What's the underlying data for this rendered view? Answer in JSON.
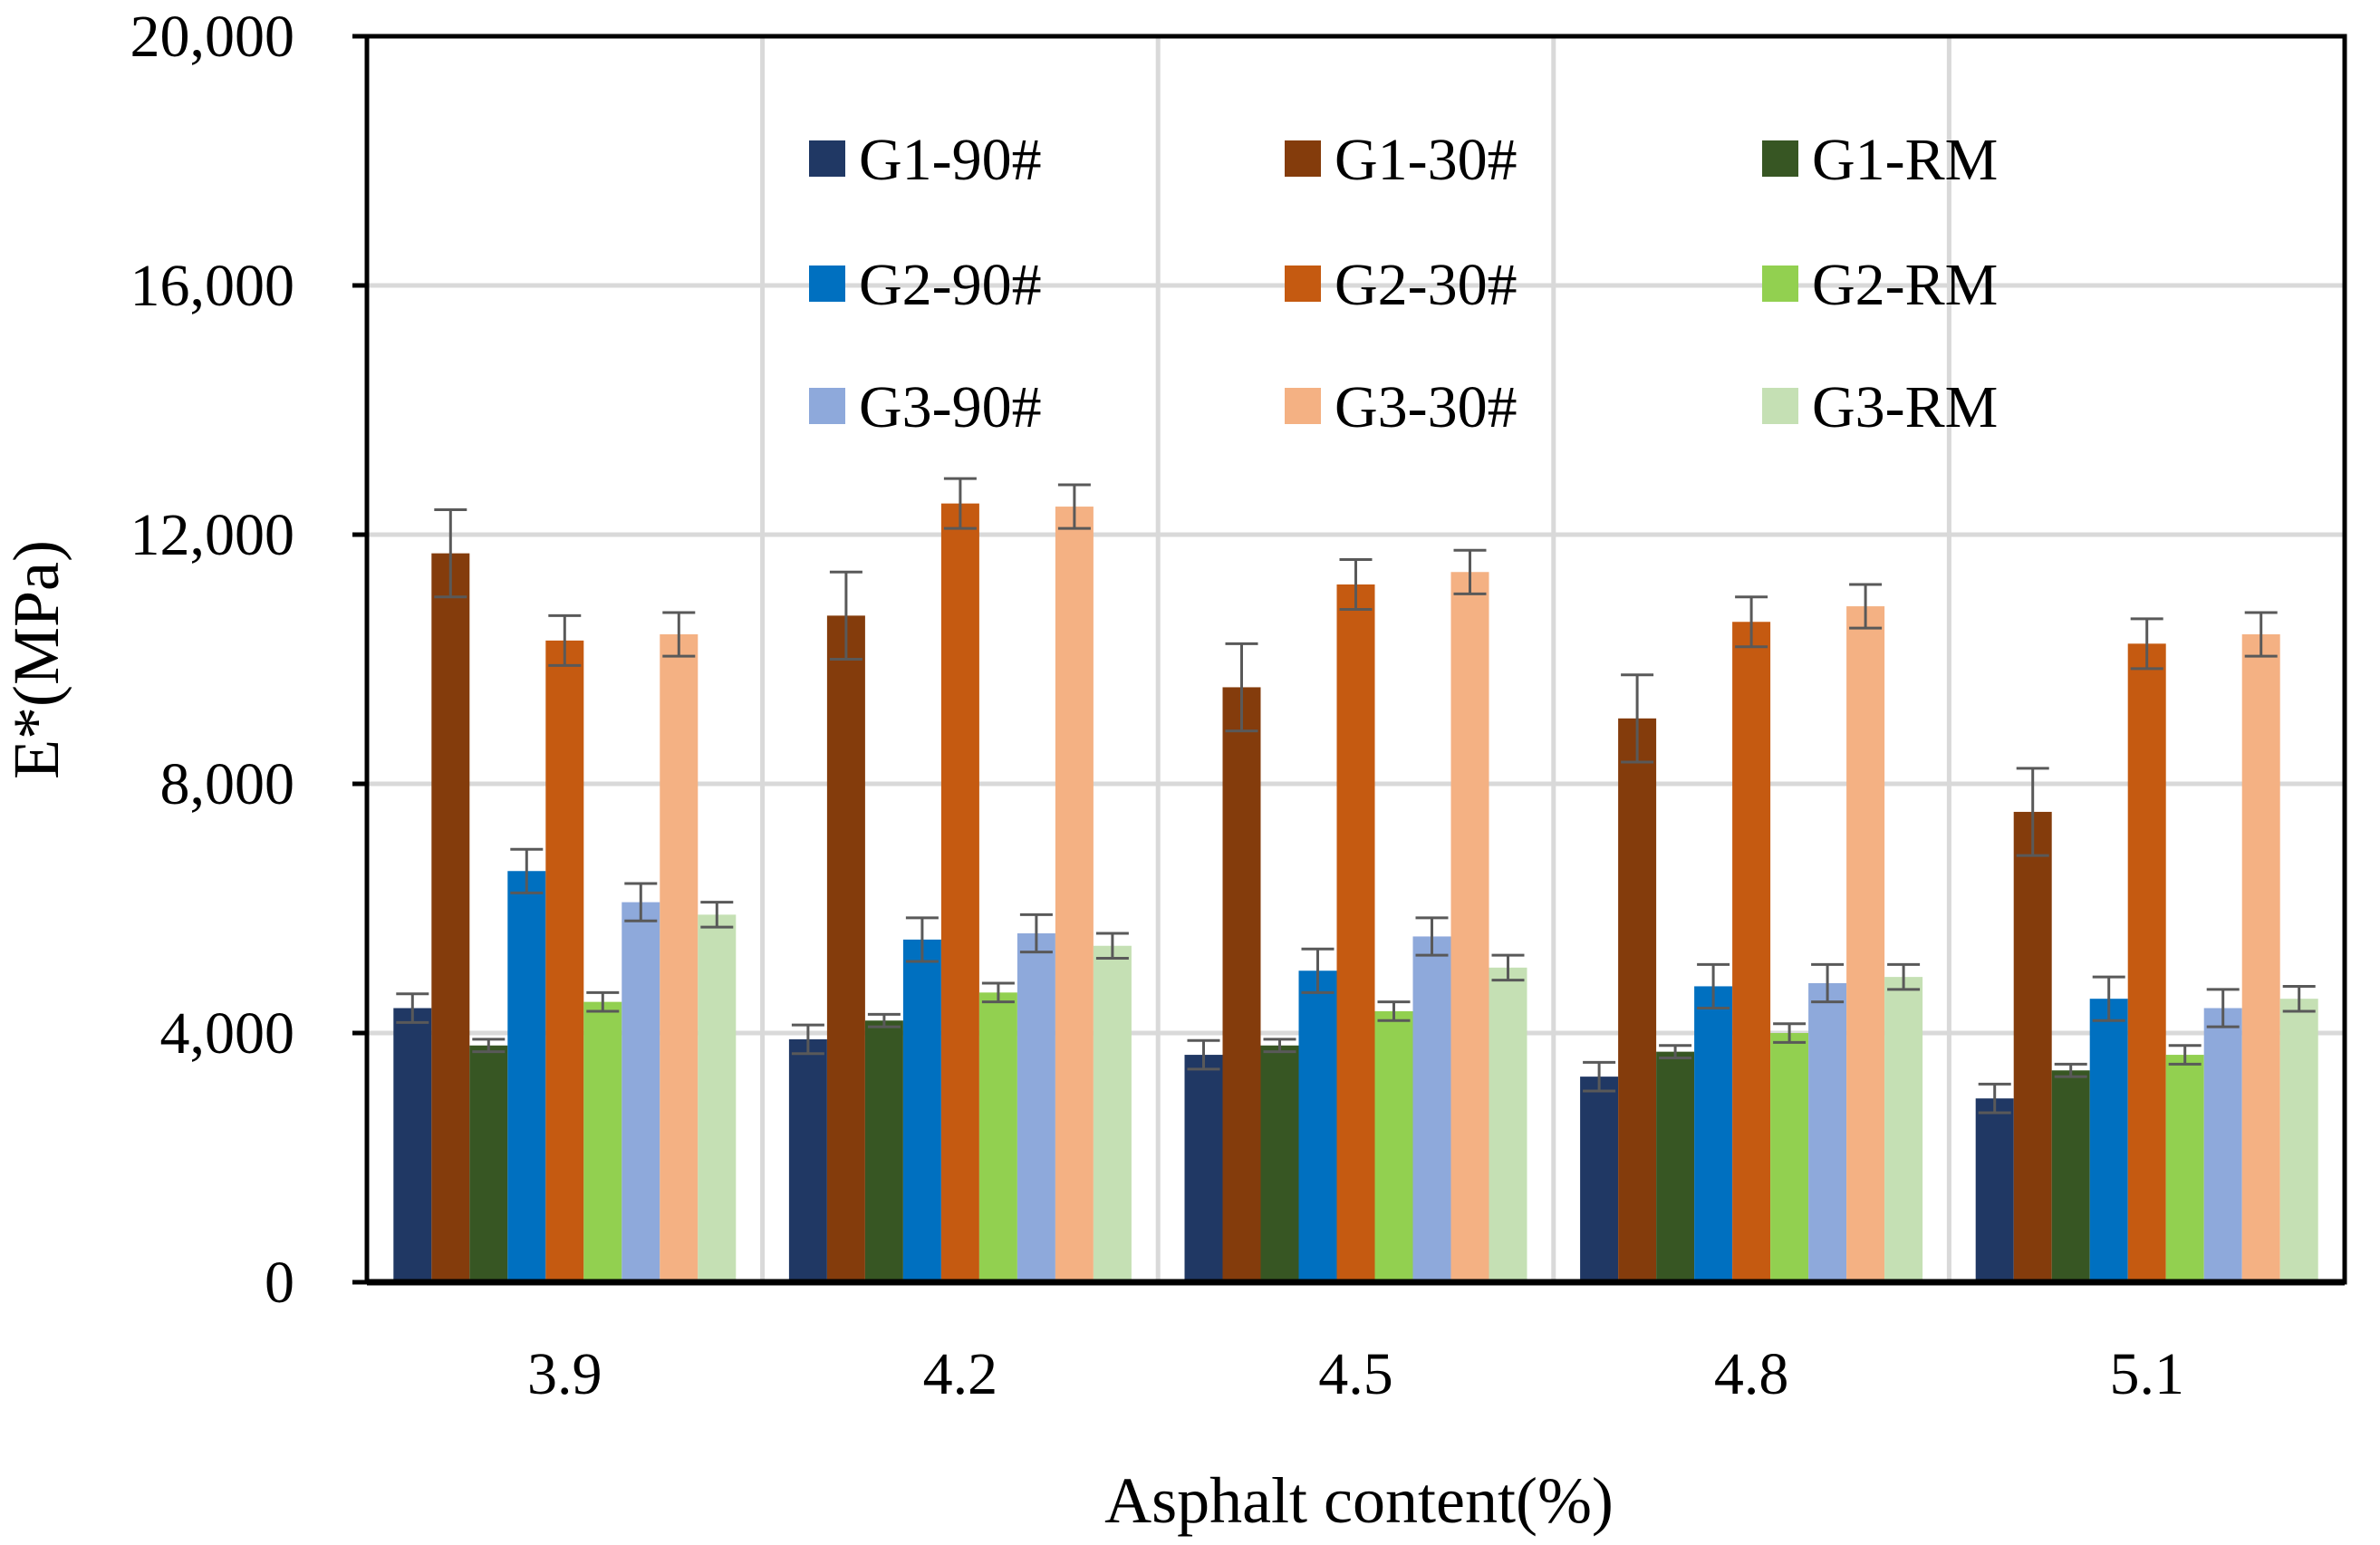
{
  "chart_data": {
    "type": "bar",
    "xlabel": "Asphalt content(%)",
    "ylabel": "E*(MPa)",
    "ylim": [
      0,
      20000
    ],
    "yticks": [
      0,
      4000,
      8000,
      12000,
      16000,
      20000
    ],
    "ytick_labels": [
      "0",
      "4,000",
      "8,000",
      "12,000",
      "16,000",
      "20,000"
    ],
    "categories": [
      "3.9",
      "4.2",
      "4.5",
      "4.8",
      "5.1"
    ],
    "grid": true,
    "legend_position": "top",
    "series": [
      {
        "name": "G1-90#",
        "color": "#203864",
        "values": [
          4400,
          3900,
          3650,
          3300,
          2950
        ],
        "errors": [
          230,
          230,
          230,
          230,
          230
        ]
      },
      {
        "name": "G1-30#",
        "color": "#843C0C",
        "values": [
          11700,
          10700,
          9550,
          9050,
          7550
        ],
        "errors": [
          700,
          700,
          700,
          700,
          700
        ]
      },
      {
        "name": "G1-RM",
        "color": "#375623",
        "values": [
          3800,
          4200,
          3800,
          3700,
          3400
        ],
        "errors": [
          100,
          100,
          100,
          100,
          100
        ]
      },
      {
        "name": "G2-90#",
        "color": "#0070C0",
        "values": [
          6600,
          5500,
          5000,
          4750,
          4550
        ],
        "errors": [
          350,
          350,
          350,
          350,
          350
        ]
      },
      {
        "name": "G2-30#",
        "color": "#C55A11",
        "values": [
          10300,
          12500,
          11200,
          10600,
          10250
        ],
        "errors": [
          400,
          400,
          400,
          400,
          400
        ]
      },
      {
        "name": "G2-RM",
        "color": "#92D050",
        "values": [
          4500,
          4650,
          4350,
          4000,
          3650
        ],
        "errors": [
          150,
          150,
          150,
          150,
          150
        ]
      },
      {
        "name": "G3-90#",
        "color": "#8EA9DB",
        "values": [
          6100,
          5600,
          5550,
          4800,
          4400
        ],
        "errors": [
          300,
          300,
          300,
          300,
          300
        ]
      },
      {
        "name": "G3-30#",
        "color": "#F4B183",
        "values": [
          10400,
          12450,
          11400,
          10850,
          10400
        ],
        "errors": [
          350,
          350,
          350,
          350,
          350
        ]
      },
      {
        "name": "G3-RM",
        "color": "#C5E0B4",
        "values": [
          5900,
          5400,
          5050,
          4900,
          4550
        ],
        "errors": [
          200,
          200,
          200,
          200,
          200
        ]
      }
    ],
    "colors": {
      "axis": "#000000",
      "grid": "#D9D9D9",
      "error_bar": "#595959",
      "background": "#FFFFFF"
    }
  }
}
